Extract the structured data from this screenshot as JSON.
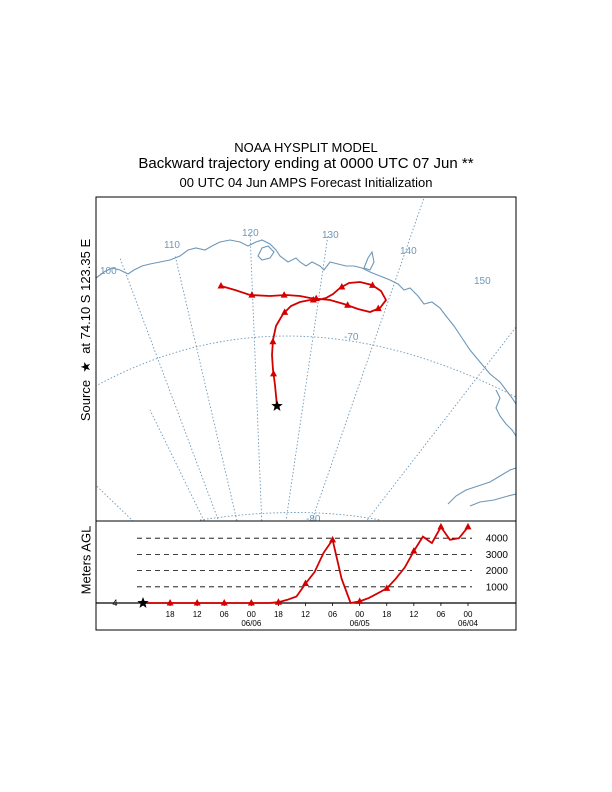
{
  "header": {
    "line1": "NOAA HYSPLIT MODEL",
    "line2": "Backward trajectory ending at 0000 UTC 07 Jun **",
    "line3": "00 UTC 04 Jun    AMPS  Forecast Initialization"
  },
  "source_label": {
    "text_prefix": "Source",
    "text_suffix": "at   74.10 S  123.35 E"
  },
  "map": {
    "longitude_labels": [
      "100",
      "110",
      "120",
      "130",
      "140",
      "150"
    ],
    "latitude_labels": [
      "-70",
      "-80"
    ],
    "line_color": "#6e97b8",
    "trajectory_color": "#d40000"
  },
  "chart_data": {
    "type": "line",
    "ylabel": "Meters AGL",
    "y_ticks": [
      1000,
      2000,
      3000,
      4000
    ],
    "y_tick_labels": [
      "1000",
      "2000",
      "3000",
      "4000"
    ],
    "x_tick_labels": [
      "18",
      "12",
      "06",
      "00",
      "18",
      "12",
      "06",
      "00",
      "18",
      "12",
      "06",
      "00"
    ],
    "date_labels": [
      "06/06",
      "06/05",
      "06/04"
    ],
    "hours_before_end": [
      0,
      2,
      4,
      6,
      8,
      10,
      12,
      14,
      16,
      18,
      20,
      22,
      24,
      26,
      28,
      30,
      32,
      34,
      36,
      38,
      40,
      42,
      44,
      46,
      48,
      50,
      52,
      54,
      56,
      58,
      60,
      62,
      64,
      66,
      68,
      70,
      72
    ],
    "height_m": [
      0,
      0,
      0,
      0,
      0,
      0,
      0,
      0,
      0,
      0,
      0,
      0,
      0,
      0,
      0,
      50,
      200,
      400,
      1200,
      1900,
      3100,
      3900,
      1500,
      0,
      100,
      300,
      600,
      900,
      1500,
      2200,
      3200,
      4100,
      3700,
      4700,
      3900,
      4000,
      4700
    ],
    "marker_every_hours": 6,
    "start_marker": "star"
  }
}
